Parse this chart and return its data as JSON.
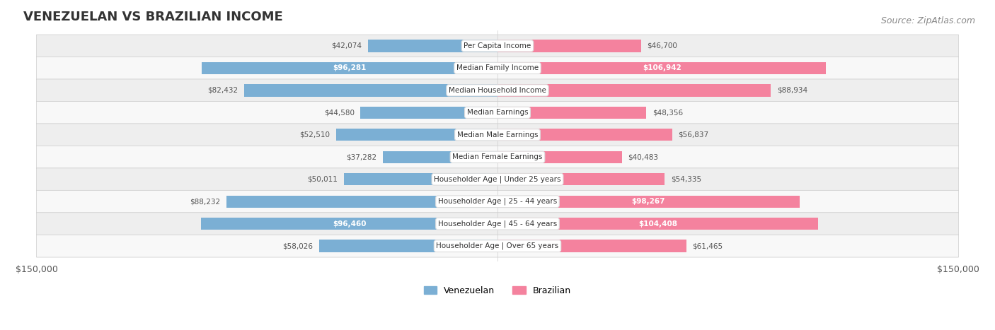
{
  "title": "VENEZUELAN VS BRAZILIAN INCOME",
  "source": "Source: ZipAtlas.com",
  "max_val": 150000,
  "categories": [
    "Per Capita Income",
    "Median Family Income",
    "Median Household Income",
    "Median Earnings",
    "Median Male Earnings",
    "Median Female Earnings",
    "Householder Age | Under 25 years",
    "Householder Age | 25 - 44 years",
    "Householder Age | 45 - 64 years",
    "Householder Age | Over 65 years"
  ],
  "venezuelan": [
    42074,
    96281,
    82432,
    44580,
    52510,
    37282,
    50011,
    88232,
    96460,
    58026
  ],
  "brazilian": [
    46700,
    106942,
    88934,
    48356,
    56837,
    40483,
    54335,
    98267,
    104408,
    61465
  ],
  "ven_labels": [
    "$42,074",
    "$96,281",
    "$82,432",
    "$44,580",
    "$52,510",
    "$37,282",
    "$50,011",
    "$88,232",
    "$96,460",
    "$58,026"
  ],
  "bra_labels": [
    "$46,700",
    "$106,942",
    "$88,934",
    "$48,356",
    "$56,837",
    "$40,483",
    "$54,335",
    "$98,267",
    "$104,408",
    "$61,465"
  ],
  "ven_label_inside": [
    false,
    true,
    false,
    false,
    false,
    false,
    false,
    false,
    true,
    false
  ],
  "bra_label_inside": [
    false,
    true,
    false,
    false,
    false,
    false,
    false,
    true,
    true,
    false
  ],
  "ven_color": "#7BAFD4",
  "bra_color": "#F4829E",
  "ven_color_dark": "#5A8FBF",
  "bra_color_dark": "#E85C85",
  "bg_color": "#F5F5F5",
  "row_bg_color": "#EEEEEE",
  "row_bg_alt": "#F8F8F8",
  "label_box_color": "#FFFFFF",
  "title_fontsize": 13,
  "source_fontsize": 9,
  "bar_height": 0.55,
  "legend_labels": [
    "Venezuelan",
    "Brazilian"
  ]
}
